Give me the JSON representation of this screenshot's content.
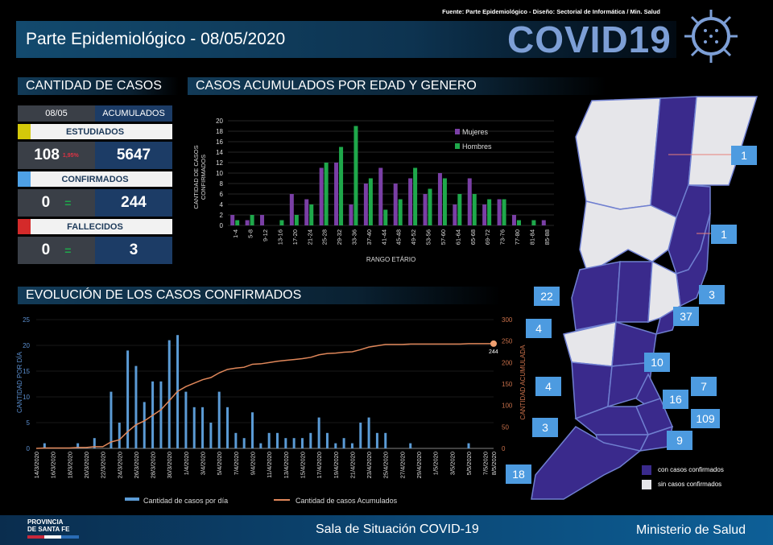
{
  "header": {
    "title": "Parte Epidemiológico - 08/05/2020",
    "source": "Fuente: Parte Epidemiológico - Diseño: Sectorial de Informática / Min. Salud",
    "logo": "COVID19"
  },
  "cases": {
    "section_title": "CANTIDAD DE CASOS",
    "col_day": "08/05",
    "col_acc": "ACUMULADOS",
    "rows": [
      {
        "label": "ESTUDIADOS",
        "color": "#d4c90a",
        "day": "108",
        "delta": "1,95%",
        "acc": "5647"
      },
      {
        "label": "CONFIRMADOS",
        "color": "#4ea1e6",
        "day": "0",
        "delta": "=",
        "acc": "244"
      },
      {
        "label": "FALLECIDOS",
        "color": "#d42a2a",
        "day": "0",
        "delta": "=",
        "acc": "3"
      }
    ]
  },
  "age_section_title": "CASOS ACUMULADOS POR EDAD Y GENERO",
  "evo_section_title": "EVOLUCIÓN DE LOS CASOS CONFIRMADOS",
  "chart_data": [
    {
      "type": "bar",
      "title": "CASOS ACUMULADOS POR EDAD Y GENERO",
      "xlabel": "RANGO ETÁRIO",
      "ylabel": "CANTIDAD DE CASOS CONFIRMADOS",
      "ylim": [
        0,
        20
      ],
      "yticks": [
        0,
        2,
        4,
        6,
        8,
        10,
        12,
        14,
        16,
        18,
        20
      ],
      "legend": "top-right",
      "categories": [
        "1-4",
        "5-8",
        "9-12",
        "13-16",
        "17-20",
        "21-24",
        "25-28",
        "29-32",
        "33-36",
        "37-40",
        "41-44",
        "45-48",
        "49-52",
        "53-56",
        "57-60",
        "61-64",
        "65-68",
        "69-72",
        "73-76",
        "77-80",
        "81-84",
        "85-88"
      ],
      "series": [
        {
          "name": "Mujeres",
          "color": "#7a3fa5",
          "values": [
            2,
            1,
            2,
            0,
            6,
            5,
            11,
            12,
            4,
            8,
            11,
            8,
            9,
            6,
            10,
            4,
            9,
            4,
            5,
            2,
            0,
            1
          ]
        },
        {
          "name": "Hombres",
          "color": "#1fa84b",
          "values": [
            1,
            2,
            0,
            1,
            2,
            4,
            12,
            15,
            19,
            9,
            3,
            5,
            11,
            7,
            9,
            6,
            6,
            5,
            5,
            1,
            1,
            0
          ]
        }
      ]
    },
    {
      "type": "bar+line",
      "title": "EVOLUCIÓN DE LOS CASOS CONFIRMADOS",
      "ylabel": "CANTIDAD POR DÍA",
      "y2label": "CANTIDAD ACUMULADA",
      "ylim": [
        0,
        25
      ],
      "y2lim": [
        0,
        300
      ],
      "yticks": [
        0,
        5,
        10,
        15,
        20,
        25
      ],
      "y2ticks": [
        0,
        50,
        100,
        150,
        200,
        250,
        300
      ],
      "legend": "bottom",
      "xticks": [
        "14/3/2020",
        "16/3/2020",
        "18/3/2020",
        "20/3/2020",
        "22/3/2020",
        "24/3/2020",
        "26/3/2020",
        "28/3/2020",
        "30/3/2020",
        "1/4/2020",
        "3/4/2020",
        "5/4/2020",
        "7/4/2020",
        "9/4/2020",
        "11/4/2020",
        "13/4/2020",
        "15/4/2020",
        "17/4/2020",
        "19/4/2020",
        "21/4/2020",
        "23/4/2020",
        "25/4/2020",
        "27/4/2020",
        "29/4/2020",
        "1/5/2020",
        "3/5/2020",
        "5/5/2020",
        "7/5/2020",
        "8/5/2020"
      ],
      "daily": [
        0,
        1,
        0,
        0,
        0,
        1,
        0,
        2,
        0,
        11,
        5,
        19,
        16,
        9,
        13,
        13,
        21,
        22,
        11,
        8,
        8,
        5,
        11,
        8,
        3,
        2,
        7,
        1,
        3,
        3,
        2,
        2,
        2,
        3,
        6,
        3,
        1,
        2,
        1,
        5,
        6,
        3,
        3,
        0,
        0,
        1,
        0,
        0,
        0,
        0,
        0,
        0,
        1,
        0,
        0,
        0
      ],
      "last_label": "244",
      "series": [
        {
          "name": "Cantidad de casos por día",
          "color": "#5b9bd5"
        },
        {
          "name": "Cantidad de casos Acumulados",
          "color": "#e0875a"
        }
      ]
    }
  ],
  "map": {
    "labels": [
      "1",
      "1",
      "22",
      "3",
      "4",
      "37",
      "10",
      "4",
      "7",
      "16",
      "109",
      "3",
      "9",
      "18"
    ],
    "legend": [
      "con casos confirmados",
      "sin casos confirmados"
    ],
    "colors": {
      "with": "#3a2a8c",
      "without": "#e6e6ea"
    }
  },
  "footer": {
    "province": "PROVINCIA\nDE SANTA FE",
    "center": "Sala de Situación COVID-19",
    "right": "Ministerio de Salud"
  }
}
